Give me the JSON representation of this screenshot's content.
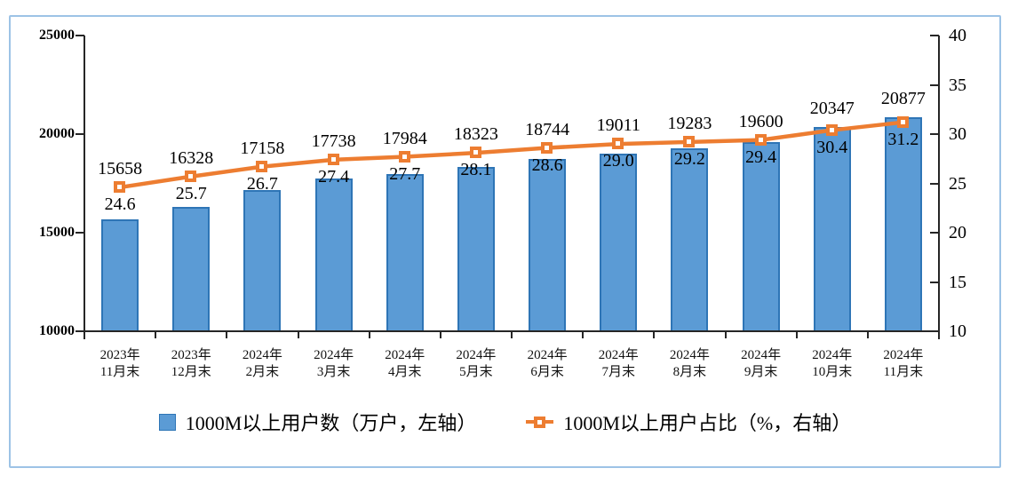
{
  "chart_data": {
    "type": "combo-bar-line",
    "title": "",
    "grid": false,
    "legend_position": "bottom",
    "categories": [
      {
        "year": "2023年",
        "month": "11月末"
      },
      {
        "year": "2023年",
        "month": "12月末"
      },
      {
        "year": "2024年",
        "month": "2月末"
      },
      {
        "year": "2024年",
        "month": "3月末"
      },
      {
        "year": "2024年",
        "month": "4月末"
      },
      {
        "year": "2024年",
        "month": "5月末"
      },
      {
        "year": "2024年",
        "month": "6月末"
      },
      {
        "year": "2024年",
        "month": "7月末"
      },
      {
        "year": "2024年",
        "month": "8月末"
      },
      {
        "year": "2024年",
        "month": "9月末"
      },
      {
        "year": "2024年",
        "month": "10月末"
      },
      {
        "year": "2024年",
        "month": "11月末"
      }
    ],
    "series": [
      {
        "name": "1000M以上用户数（万户，左轴）",
        "type": "bar",
        "axis": "left",
        "values": [
          15658,
          16328,
          17158,
          17738,
          17984,
          18323,
          18744,
          19011,
          19283,
          19600,
          20347,
          20877
        ],
        "labels": [
          "15658",
          "16328",
          "17158",
          "17738",
          "17984",
          "18323",
          "18744",
          "19011",
          "19283",
          "19600",
          "20347",
          "20877"
        ]
      },
      {
        "name": "1000M以上用户占比（%，右轴）",
        "type": "line",
        "axis": "right",
        "values": [
          24.6,
          25.7,
          26.7,
          27.4,
          27.7,
          28.1,
          28.6,
          29.0,
          29.2,
          29.4,
          30.4,
          31.2
        ],
        "labels": [
          "24.6",
          "25.7",
          "26.7",
          "27.4",
          "27.7",
          "28.1",
          "28.6",
          "29.0",
          "29.2",
          "29.4",
          "30.4",
          "31.2"
        ]
      }
    ],
    "left_axis": {
      "min": 10000,
      "max": 25000,
      "ticks": [
        "25000",
        "20000",
        "15000",
        "10000"
      ]
    },
    "right_axis": {
      "min": 10,
      "max": 40,
      "ticks": [
        "40",
        "35",
        "30",
        "25",
        "20",
        "15",
        "10"
      ]
    },
    "colors": {
      "bar_fill": "#5B9BD5",
      "bar_border": "#2E75B6",
      "line": "#ED7D31",
      "frame": "#9DC3E6",
      "axis": "#262626",
      "text": "#000000"
    }
  }
}
